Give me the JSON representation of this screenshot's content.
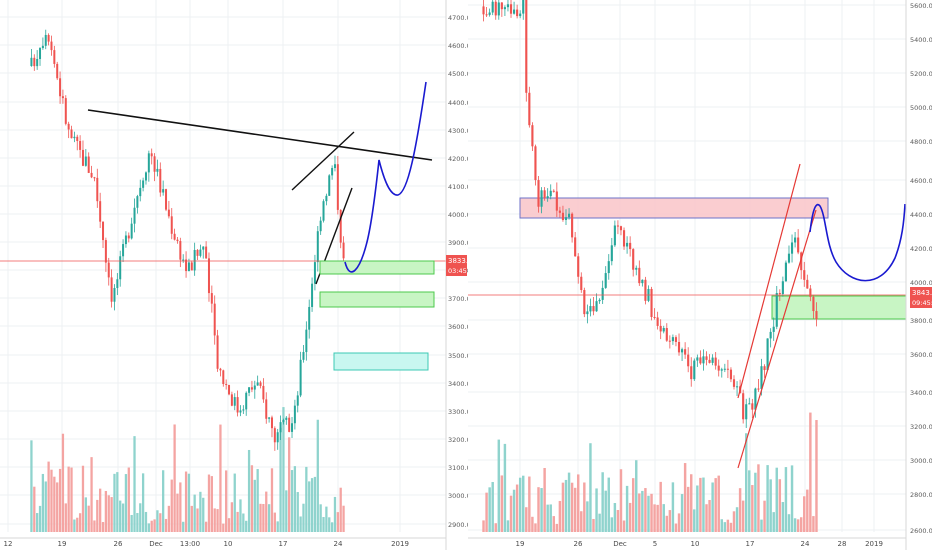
{
  "chart_data": [
    {
      "type": "candlestick",
      "panel": "left",
      "last_price_label": "3833.5",
      "countdown_label": "03:45:4",
      "ylim": [
        2850,
        4780
      ],
      "y_ticks": [
        "4700.0",
        "4600.0",
        "4500.0",
        "4400.0",
        "4300.0",
        "4200.0",
        "4100.0",
        "4000.0",
        "3900.0",
        "3800.0",
        "3700.0",
        "3600.0",
        "3500.0",
        "3400.0",
        "3300.0",
        "3200.0",
        "3100.0",
        "3000.0",
        "2900.0"
      ],
      "x_ticks": [
        "12",
        "19",
        "26",
        "Dec",
        "13:00",
        "10",
        "17",
        "24",
        "2019"
      ],
      "colors": {
        "up": "#26a69a",
        "down": "#ef5350",
        "volume_up": "#8fd3cd",
        "volume_down": "#f4a4a2",
        "price_line": "#ef5350"
      },
      "annotations": [
        "black resistance trendline",
        "black rising wedge lines",
        "blue projected path",
        "green support boxes",
        "teal support box"
      ]
    },
    {
      "type": "candlestick",
      "panel": "right",
      "last_price_label": "3843.5",
      "countdown_label": "09:45:4",
      "ylim": [
        2560,
        5660
      ],
      "y_ticks": [
        "5600.0",
        "5400.0",
        "5200.0",
        "5000.0",
        "4800.0",
        "4600.0",
        "4400.0",
        "4200.0",
        "4000.0",
        "3800.0",
        "3600.0",
        "3400.0",
        "3200.0",
        "3000.0",
        "2800.0",
        "2600.0"
      ],
      "x_ticks": [
        "19",
        "26",
        "Dec",
        "5",
        "10",
        "17",
        "24",
        "28",
        "2019"
      ],
      "colors": {
        "up": "#26a69a",
        "down": "#ef5350",
        "volume_up": "#8fd3cd",
        "volume_down": "#f4a4a2",
        "price_line": "#ef5350"
      },
      "annotations": [
        "pink resistance zone",
        "green support zone",
        "red rising channel",
        "blue projected path"
      ]
    }
  ]
}
